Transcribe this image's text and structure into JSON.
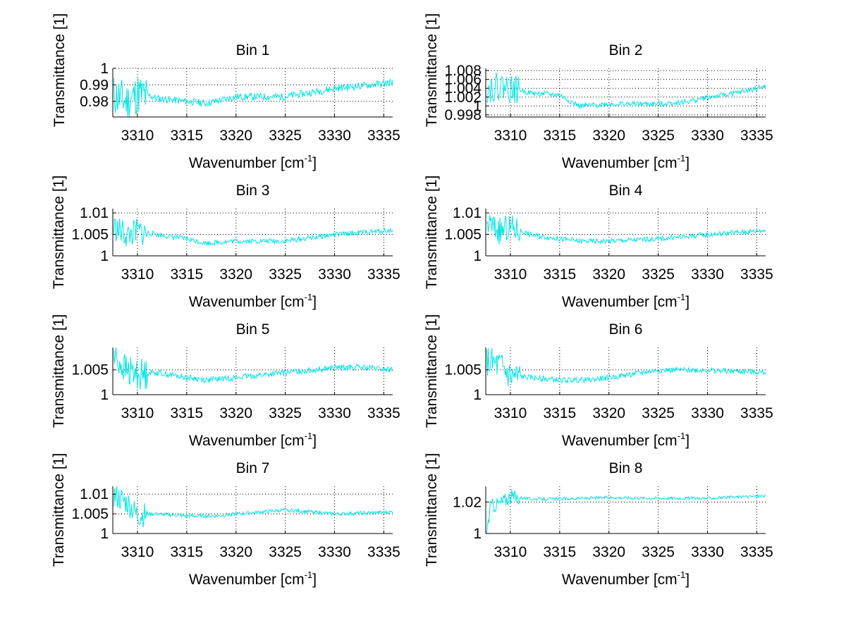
{
  "figure": {
    "background": "#ffffff",
    "line_color": "#00e5e5"
  },
  "chart_data": [
    {
      "type": "line",
      "title": "Bin 1",
      "xlabel": "Wavenumber [cm",
      "xlabel_sup": "-1",
      "xlabel_close": "]",
      "ylabel": "Transmittance [1]",
      "xlim": [
        3307.5,
        3335.9
      ],
      "ylim": [
        0.9705,
        1.0
      ],
      "xticks": [
        3310,
        3315,
        3320,
        3325,
        3330,
        3335
      ],
      "xtick_labels": [
        "3310",
        "3315",
        "3320",
        "3325",
        "3330",
        "3335"
      ],
      "yticks": [
        0.98,
        0.99,
        1.0
      ],
      "ytick_labels": [
        "0.98",
        "0.99",
        "1"
      ],
      "grid": true,
      "series": [
        {
          "name": "Bin 1",
          "trend": [
            [
              3307.6,
              0.985
            ],
            [
              3309,
              0.981
            ],
            [
              3310,
              0.986
            ],
            [
              3312,
              0.982
            ],
            [
              3317,
              0.979
            ],
            [
              3320,
              0.983
            ],
            [
              3325,
              0.983
            ],
            [
              3330,
              0.988
            ],
            [
              3335,
              0.991
            ],
            [
              3335.9,
              0.992
            ]
          ],
          "noise": 0.0045,
          "early_noise": 0.016,
          "seed": 11
        }
      ]
    },
    {
      "type": "line",
      "title": "Bin 2",
      "xlabel": "Wavenumber [cm",
      "xlabel_sup": "-1",
      "xlabel_close": "]",
      "ylabel": "Transmittance [1]",
      "xlim": [
        3307.5,
        3335.9
      ],
      "ylim": [
        0.9975,
        1.0085
      ],
      "xticks": [
        3310,
        3315,
        3320,
        3325,
        3330,
        3335
      ],
      "xtick_labels": [
        "3310",
        "3315",
        "3320",
        "3325",
        "3330",
        "3335"
      ],
      "yticks": [
        0.998,
        1.0,
        1.002,
        1.004,
        1.006,
        1.008
      ],
      "ytick_labels": [
        "0.998",
        "1",
        "1.002",
        "1.004",
        "1.006",
        "1.008"
      ],
      "grid": true,
      "series": [
        {
          "name": "Bin 2",
          "trend": [
            [
              3307.6,
              1.004
            ],
            [
              3309,
              1.005
            ],
            [
              3312,
              1.003
            ],
            [
              3315,
              1.0025
            ],
            [
              3317,
              1.0
            ],
            [
              3320,
              1.0005
            ],
            [
              3325,
              1.0005
            ],
            [
              3328,
              1.001
            ],
            [
              3330,
              1.002
            ],
            [
              3333,
              1.003
            ],
            [
              3335.9,
              1.0045
            ]
          ],
          "noise": 0.0012,
          "early_noise": 0.004,
          "seed": 22
        }
      ]
    },
    {
      "type": "line",
      "title": "Bin 3",
      "xlabel": "Wavenumber [cm",
      "xlabel_sup": "-1",
      "xlabel_close": "]",
      "ylabel": "Transmittance [1]",
      "xlim": [
        3307.5,
        3335.9
      ],
      "ylim": [
        1.0,
        1.011
      ],
      "xticks": [
        3310,
        3315,
        3320,
        3325,
        3330,
        3335
      ],
      "xtick_labels": [
        "3310",
        "3315",
        "3320",
        "3325",
        "3330",
        "3335"
      ],
      "yticks": [
        1.0,
        1.005,
        1.01
      ],
      "ytick_labels": [
        "1",
        "1.005",
        "1.01"
      ],
      "grid": true,
      "series": [
        {
          "name": "Bin 3",
          "trend": [
            [
              3307.6,
              1.007
            ],
            [
              3309,
              1.005
            ],
            [
              3310,
              1.006
            ],
            [
              3312,
              1.005
            ],
            [
              3315,
              1.004
            ],
            [
              3317,
              1.003
            ],
            [
              3320,
              1.0035
            ],
            [
              3325,
              1.0035
            ],
            [
              3330,
              1.005
            ],
            [
              3335.9,
              1.006
            ]
          ],
          "noise": 0.0012,
          "early_noise": 0.004,
          "seed": 33
        }
      ]
    },
    {
      "type": "line",
      "title": "Bin 4",
      "xlabel": "Wavenumber [cm",
      "xlabel_sup": "-1",
      "xlabel_close": "]",
      "ylabel": "Transmittance [1]",
      "xlim": [
        3307.5,
        3335.9
      ],
      "ylim": [
        1.0,
        1.011
      ],
      "xticks": [
        3310,
        3315,
        3320,
        3325,
        3330,
        3335
      ],
      "xtick_labels": [
        "3310",
        "3315",
        "3320",
        "3325",
        "3330",
        "3335"
      ],
      "yticks": [
        1.0,
        1.005,
        1.01
      ],
      "ytick_labels": [
        "1",
        "1.005",
        "1.01"
      ],
      "grid": true,
      "series": [
        {
          "name": "Bin 4",
          "trend": [
            [
              3307.6,
              1.008
            ],
            [
              3309,
              1.006
            ],
            [
              3310,
              1.007
            ],
            [
              3312,
              1.005
            ],
            [
              3315,
              1.004
            ],
            [
              3317,
              1.0035
            ],
            [
              3320,
              1.0035
            ],
            [
              3325,
              1.004
            ],
            [
              3330,
              1.005
            ],
            [
              3335.9,
              1.006
            ]
          ],
          "noise": 0.0012,
          "early_noise": 0.004,
          "seed": 44
        }
      ]
    },
    {
      "type": "line",
      "title": "Bin 5",
      "xlabel": "Wavenumber [cm",
      "xlabel_sup": "-1",
      "xlabel_close": "]",
      "ylabel": "Transmittance [1]",
      "xlim": [
        3307.5,
        3335.9
      ],
      "ylim": [
        1.0,
        1.0095
      ],
      "xticks": [
        3310,
        3315,
        3320,
        3325,
        3330,
        3335
      ],
      "xtick_labels": [
        "3310",
        "3315",
        "3320",
        "3325",
        "3330",
        "3335"
      ],
      "yticks": [
        1.0,
        1.005
      ],
      "ytick_labels": [
        "1",
        "1.005"
      ],
      "grid": true,
      "series": [
        {
          "name": "Bin 5",
          "trend": [
            [
              3307.6,
              1.008
            ],
            [
              3309,
              1.005
            ],
            [
              3310,
              1.0045
            ],
            [
              3312,
              1.0045
            ],
            [
              3315,
              1.0035
            ],
            [
              3317,
              1.003
            ],
            [
              3320,
              1.0035
            ],
            [
              3325,
              1.0045
            ],
            [
              3330,
              1.0055
            ],
            [
              3333,
              1.0055
            ],
            [
              3335.9,
              1.005
            ]
          ],
          "noise": 0.0012,
          "early_noise": 0.004,
          "seed": 55
        }
      ]
    },
    {
      "type": "line",
      "title": "Bin 6",
      "xlabel": "Wavenumber [cm",
      "xlabel_sup": "-1",
      "xlabel_close": "]",
      "ylabel": "Transmittance [1]",
      "xlim": [
        3307.5,
        3335.9
      ],
      "ylim": [
        1.0,
        1.0095
      ],
      "xticks": [
        3310,
        3315,
        3320,
        3325,
        3330,
        3335
      ],
      "xtick_labels": [
        "3310",
        "3315",
        "3320",
        "3325",
        "3330",
        "3335"
      ],
      "yticks": [
        1.0,
        1.005
      ],
      "ytick_labels": [
        "1",
        "1.005"
      ],
      "grid": true,
      "series": [
        {
          "name": "Bin 6",
          "trend": [
            [
              3307.6,
              1.007
            ],
            [
              3309,
              1.006
            ],
            [
              3310,
              1.004
            ],
            [
              3312,
              1.0035
            ],
            [
              3315,
              1.003
            ],
            [
              3318,
              1.003
            ],
            [
              3320,
              1.0035
            ],
            [
              3325,
              1.005
            ],
            [
              3330,
              1.005
            ],
            [
              3335.9,
              1.0045
            ]
          ],
          "noise": 0.0011,
          "early_noise": 0.004,
          "seed": 66
        }
      ]
    },
    {
      "type": "line",
      "title": "Bin 7",
      "xlabel": "Wavenumber [cm",
      "xlabel_sup": "-1",
      "xlabel_close": "]",
      "ylabel": "Transmittance [1]",
      "xlim": [
        3307.5,
        3335.9
      ],
      "ylim": [
        1.0,
        1.012
      ],
      "xticks": [
        3310,
        3315,
        3320,
        3325,
        3330,
        3335
      ],
      "xtick_labels": [
        "3310",
        "3315",
        "3320",
        "3325",
        "3330",
        "3335"
      ],
      "yticks": [
        1.0,
        1.005,
        1.01
      ],
      "ytick_labels": [
        "1",
        "1.005",
        "1.01"
      ],
      "grid": true,
      "series": [
        {
          "name": "Bin 7",
          "trend": [
            [
              3307.6,
              1.01
            ],
            [
              3309,
              1.008
            ],
            [
              3310,
              1.005
            ],
            [
              3312,
              1.005
            ],
            [
              3315,
              1.0045
            ],
            [
              3318,
              1.0045
            ],
            [
              3320,
              1.005
            ],
            [
              3325,
              1.006
            ],
            [
              3328,
              1.0055
            ],
            [
              3330,
              1.005
            ],
            [
              3335.9,
              1.0055
            ]
          ],
          "noise": 0.0009,
          "early_noise": 0.004,
          "seed": 77
        }
      ]
    },
    {
      "type": "line",
      "title": "Bin 8",
      "xlabel": "Wavenumber [cm",
      "xlabel_sup": "-1",
      "xlabel_close": "]",
      "ylabel": "Transmittance [1]",
      "xlim": [
        3307.5,
        3335.9
      ],
      "ylim": [
        1.0,
        1.03
      ],
      "xticks": [
        3310,
        3315,
        3320,
        3325,
        3330,
        3335
      ],
      "xtick_labels": [
        "3310",
        "3315",
        "3320",
        "3325",
        "3330",
        "3335"
      ],
      "yticks": [
        1.0,
        1.02
      ],
      "ytick_labels": [
        "1",
        "1.02"
      ],
      "grid": true,
      "series": [
        {
          "name": "Bin 8",
          "trend": [
            [
              3307.6,
              1.002
            ],
            [
              3308,
              1.018
            ],
            [
              3309,
              1.02
            ],
            [
              3310,
              1.024
            ],
            [
              3312,
              1.022
            ],
            [
              3315,
              1.022
            ],
            [
              3320,
              1.023
            ],
            [
              3325,
              1.0225
            ],
            [
              3330,
              1.0225
            ],
            [
              3335.9,
              1.024
            ]
          ],
          "noise": 0.0018,
          "early_noise": 0.006,
          "seed": 88
        }
      ]
    }
  ]
}
